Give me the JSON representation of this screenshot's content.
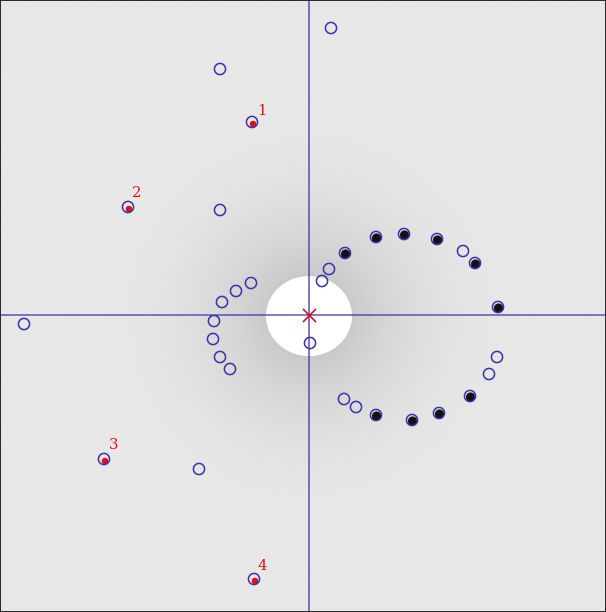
{
  "colors": {
    "overlay": "#3a35a8",
    "indexed": "#e0101a",
    "background": "#ececec",
    "beamstop": "#ffffff"
  },
  "icons": {
    "beam_center": "cross-icon",
    "predicted_reflection": "circle-icon",
    "observed_reflection": "dot-icon"
  },
  "labels": [
    "1",
    "2",
    "3",
    "4"
  ]
}
